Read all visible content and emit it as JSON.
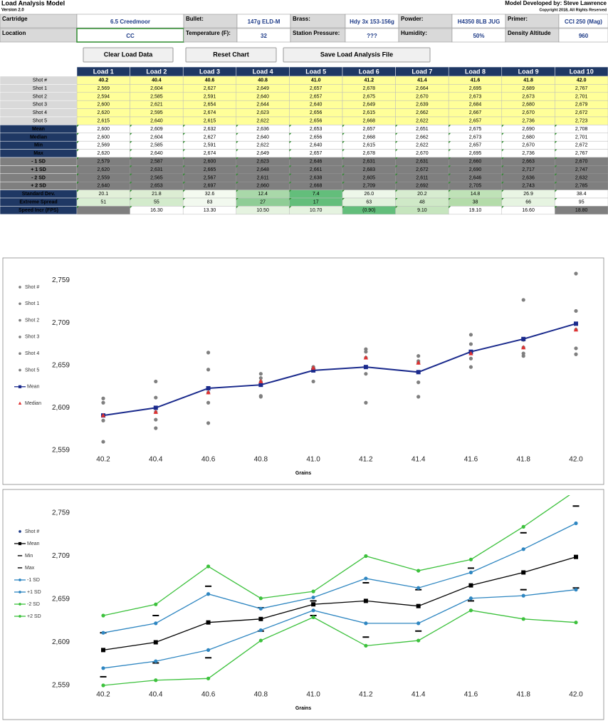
{
  "header": {
    "title": "Load Analysis Model",
    "version": "Version 2.0",
    "developer": "Model Developed by: Steve Lawrence",
    "copyright": "Copyright 2018, All Rights Reserved"
  },
  "inputs": [
    {
      "label": "Cartridge",
      "value": "6.5 Creedmoor"
    },
    {
      "label": "Bullet:",
      "value": "147g ELD-M"
    },
    {
      "label": "Brass:",
      "value": "Hdy 3x 153-156g"
    },
    {
      "label": "Powder:",
      "value": "H4350 8LB JUG"
    },
    {
      "label": "Primer:",
      "value": "CCI 250 (Mag)"
    },
    {
      "label": "Location",
      "value": "CC"
    },
    {
      "label": "Temperature (F):",
      "value": "32"
    },
    {
      "label": "Station Pressure:",
      "value": "???"
    },
    {
      "label": "Humidity:",
      "value": "50%"
    },
    {
      "label": "Density Altitude",
      "value": "960"
    }
  ],
  "buttons": [
    {
      "label": "Clear Load Data",
      "color": "#e03030"
    },
    {
      "label": "Reset Chart",
      "color": "#000000"
    },
    {
      "label": "Save Load Analysis File",
      "color": "#2e8b2e"
    }
  ],
  "table": {
    "columns": [
      "Load 1",
      "Load 2",
      "Load 3",
      "Load 4",
      "Load 5",
      "Load 6",
      "Load 7",
      "Load 8",
      "Load 9",
      "Load 10"
    ],
    "rows": [
      {
        "label": "Shot #",
        "cells": [
          "40.2",
          "40.4",
          "40.6",
          "40.8",
          "41.0",
          "41.2",
          "41.4",
          "41.6",
          "41.8",
          "42.0"
        ]
      },
      {
        "label": "Shot 1",
        "cells": [
          "2,569",
          "2,604",
          "2,627",
          "2,649",
          "2,657",
          "2,678",
          "2,664",
          "2,695",
          "2,689",
          "2,767"
        ]
      },
      {
        "label": "Shot 2",
        "cells": [
          "2,594",
          "2,585",
          "2,591",
          "2,640",
          "2,657",
          "2,675",
          "2,670",
          "2,673",
          "2,673",
          "2,701"
        ]
      },
      {
        "label": "Shot 3",
        "cells": [
          "2,600",
          "2,621",
          "2,654",
          "2,644",
          "2,640",
          "2,649",
          "2,639",
          "2,684",
          "2,680",
          "2,679"
        ]
      },
      {
        "label": "Shot 4",
        "cells": [
          "2,620",
          "2,595",
          "2,674",
          "2,623",
          "2,656",
          "2,615",
          "2,662",
          "2,667",
          "2,670",
          "2,672"
        ]
      },
      {
        "label": "Shot 5",
        "cells": [
          "2,615",
          "2,640",
          "2,615",
          "2,622",
          "2,656",
          "2,668",
          "2,622",
          "2,657",
          "2,736",
          "2,723"
        ]
      },
      {
        "label": "Mean",
        "cells": [
          "2,600",
          "2,609",
          "2,632",
          "2,636",
          "2,653",
          "2,657",
          "2,651",
          "2,675",
          "2,690",
          "2,708"
        ]
      },
      {
        "label": "Median",
        "cells": [
          "2,600",
          "2,604",
          "2,627",
          "2,640",
          "2,656",
          "2,668",
          "2,662",
          "2,673",
          "2,680",
          "2,701"
        ]
      },
      {
        "label": "Min",
        "cells": [
          "2,569",
          "2,585",
          "2,591",
          "2,622",
          "2,640",
          "2,615",
          "2,622",
          "2,657",
          "2,670",
          "2,672"
        ]
      },
      {
        "label": "Max",
        "cells": [
          "2,620",
          "2,640",
          "2,674",
          "2,649",
          "2,657",
          "2,678",
          "2,670",
          "2,695",
          "2,736",
          "2,767"
        ]
      },
      {
        "label": "- 1 SD",
        "cells": [
          "2,579",
          "2,587",
          "2,600",
          "2,623",
          "2,646",
          "2,631",
          "2,631",
          "2,660",
          "2,663",
          "2,670"
        ]
      },
      {
        "label": "+ 1 SD",
        "cells": [
          "2,620",
          "2,631",
          "2,665",
          "2,648",
          "2,661",
          "2,683",
          "2,672",
          "2,690",
          "2,717",
          "2,747"
        ]
      },
      {
        "label": "- 2 SD",
        "cells": [
          "2,559",
          "2,565",
          "2,567",
          "2,611",
          "2,638",
          "2,605",
          "2,611",
          "2,646",
          "2,636",
          "2,632"
        ]
      },
      {
        "label": "+ 2 SD",
        "cells": [
          "2,640",
          "2,653",
          "2,697",
          "2,660",
          "2,668",
          "2,709",
          "2,692",
          "2,705",
          "2,743",
          "2,785"
        ]
      },
      {
        "label": "Standard Dev.",
        "cells": [
          "20.1",
          "21.8",
          "32.6",
          "12.4",
          "7.4",
          "26.0",
          "20.2",
          "14.8",
          "26.9",
          "38.4"
        ],
        "colors": [
          "#e2f0d9",
          "#dcedd3",
          "#f4faf0",
          "#a9d8a9",
          "#63be7b",
          "#edf7e9",
          "#d7ecd0",
          "#bfe2b7",
          "#e9f5e4",
          "#ffffff"
        ]
      },
      {
        "label": "Extreme Spread",
        "cells": [
          "51",
          "55",
          "83",
          "27",
          "17",
          "63",
          "48",
          "38",
          "66",
          "95"
        ],
        "colors": [
          "#d9eed3",
          "#d3ebcc",
          "#f2f9ef",
          "#8fcd96",
          "#63be7b",
          "#e2f2dd",
          "#cfe9c7",
          "#b4dcaa",
          "#e6f4e1",
          "#ffffff"
        ]
      },
      {
        "label": "Speed Incr (FPS)",
        "cells": [
          null,
          "16.30",
          "13.30",
          "10.50",
          "10.70",
          "(0.90)",
          "9.10",
          "19.10",
          "16.60",
          "18.80"
        ],
        "colors": [
          "#7f7f7f",
          "#ffffff",
          "#ffffff",
          "#e5f3e0",
          "#e5f3e0",
          "#63be7b",
          "#c6e5be",
          "#ffffff",
          "#ffffff",
          "#7f7f7f"
        ]
      }
    ]
  },
  "chart_data": [
    {
      "type": "scatter",
      "x_label": "Grains",
      "categories": [
        "40.2",
        "40.4",
        "40.6",
        "40.8",
        "41.0",
        "41.2",
        "41.4",
        "41.6",
        "41.8",
        "42.0"
      ],
      "ylim": [
        2559,
        2780
      ],
      "yticks": [
        {
          "value": 2559,
          "label": "2,559"
        },
        {
          "value": 2609,
          "label": "2,609"
        },
        {
          "value": 2659,
          "label": "2,659"
        },
        {
          "value": 2709,
          "label": "2,709"
        },
        {
          "value": 2759,
          "label": "2,759"
        }
      ],
      "grid": false,
      "series": [
        {
          "name": "Shot #",
          "color": "#7f7f7f",
          "marker": "circle",
          "line": false,
          "values": [
            null,
            null,
            null,
            null,
            null,
            null,
            null,
            null,
            null,
            null
          ]
        },
        {
          "name": "Shot 1",
          "color": "#7f7f7f",
          "marker": "circle",
          "line": false,
          "values": [
            2569,
            2604,
            2627,
            2649,
            2657,
            2678,
            2664,
            2695,
            2689,
            2767
          ]
        },
        {
          "name": "Shot 2",
          "color": "#7f7f7f",
          "marker": "circle",
          "line": false,
          "values": [
            2594,
            2585,
            2591,
            2640,
            2657,
            2675,
            2670,
            2673,
            2673,
            2701
          ]
        },
        {
          "name": "Shot 3",
          "color": "#7f7f7f",
          "marker": "circle",
          "line": false,
          "values": [
            2600,
            2621,
            2654,
            2644,
            2640,
            2649,
            2639,
            2684,
            2680,
            2679
          ]
        },
        {
          "name": "Shot 4",
          "color": "#7f7f7f",
          "marker": "circle",
          "line": false,
          "values": [
            2620,
            2595,
            2674,
            2623,
            2656,
            2615,
            2662,
            2667,
            2670,
            2672
          ]
        },
        {
          "name": "Shot 5",
          "color": "#7f7f7f",
          "marker": "circle",
          "line": false,
          "values": [
            2615,
            2640,
            2615,
            2622,
            2656,
            2668,
            2622,
            2657,
            2736,
            2723
          ]
        },
        {
          "name": "Mean",
          "color": "#1a2a8c",
          "marker": "square",
          "line": true,
          "values": [
            2600,
            2609,
            2632,
            2636,
            2653,
            2657,
            2651,
            2675,
            2690,
            2708
          ]
        },
        {
          "name": "Median",
          "color": "#e03030",
          "marker": "triangle",
          "line": false,
          "values": [
            2600,
            2604,
            2627,
            2640,
            2656,
            2668,
            2662,
            2673,
            2680,
            2701
          ]
        }
      ]
    },
    {
      "type": "line",
      "x_label": "Grains",
      "categories": [
        "40.2",
        "40.4",
        "40.6",
        "40.8",
        "41.0",
        "41.2",
        "41.4",
        "41.6",
        "41.8",
        "42.0"
      ],
      "ylim": [
        2559,
        2778
      ],
      "yticks": [
        {
          "value": 2559,
          "label": "2,559"
        },
        {
          "value": 2609,
          "label": "2,609"
        },
        {
          "value": 2659,
          "label": "2,659"
        },
        {
          "value": 2709,
          "label": "2,709"
        },
        {
          "value": 2759,
          "label": "2,759"
        }
      ],
      "grid": false,
      "series": [
        {
          "name": "Shot #",
          "color": "#1f3c88",
          "marker": "circle",
          "line": false,
          "values": [
            null,
            null,
            null,
            null,
            null,
            null,
            null,
            null,
            null,
            null
          ]
        },
        {
          "name": "Mean",
          "color": "#000000",
          "marker": "square",
          "line": true,
          "values": [
            2600,
            2609,
            2632,
            2636,
            2653,
            2657,
            2651,
            2675,
            2690,
            2708
          ]
        },
        {
          "name": "Min",
          "color": "#000000",
          "marker": "dash",
          "line": false,
          "values": [
            2569,
            2585,
            2591,
            2622,
            2640,
            2615,
            2622,
            2657,
            2670,
            2672
          ]
        },
        {
          "name": "Max",
          "color": "#000000",
          "marker": "dash",
          "line": false,
          "values": [
            2620,
            2640,
            2674,
            2649,
            2657,
            2678,
            2670,
            2695,
            2736,
            2767
          ]
        },
        {
          "name": "-1 SD",
          "color": "#2e86c1",
          "marker": "circle",
          "line": true,
          "values": [
            2579,
            2587,
            2600,
            2623,
            2646,
            2631,
            2631,
            2660,
            2663,
            2670
          ]
        },
        {
          "name": "+1 SD",
          "color": "#2e86c1",
          "marker": "circle",
          "line": true,
          "values": [
            2620,
            2631,
            2665,
            2648,
            2661,
            2683,
            2672,
            2690,
            2717,
            2747
          ]
        },
        {
          "name": "-2 SD",
          "color": "#3cc13c",
          "marker": "circle",
          "line": true,
          "values": [
            2559,
            2565,
            2567,
            2611,
            2638,
            2605,
            2611,
            2646,
            2636,
            2632
          ]
        },
        {
          "name": "+2 SD",
          "color": "#3cc13c",
          "marker": "circle",
          "line": true,
          "values": [
            2640,
            2653,
            2697,
            2660,
            2668,
            2709,
            2692,
            2705,
            2743,
            2785
          ]
        }
      ]
    }
  ]
}
